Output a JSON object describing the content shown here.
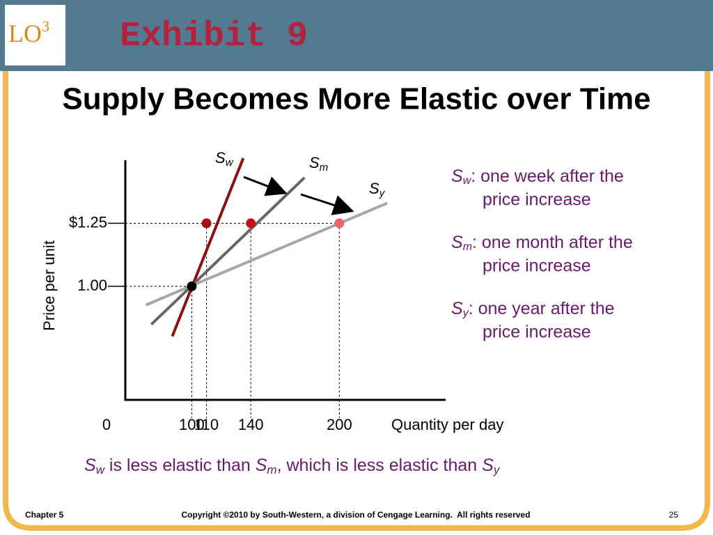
{
  "header": {
    "logo": "LO",
    "logo_sup": "3",
    "title": "Exhibit 9"
  },
  "chart_data": {
    "type": "line",
    "title": "Supply Becomes More Elastic over Time",
    "x_label": "Quantity per day",
    "y_label": "Price per unit",
    "origin_label": "0",
    "xlim": [
      55,
      272
    ],
    "ylim": [
      0.55,
      1.5
    ],
    "xticks": [
      100,
      110,
      140,
      200
    ],
    "yticks": [
      {
        "value": 1,
        "label": "1.00"
      },
      {
        "value": 1.25,
        "label": "$1.25"
      }
    ],
    "series": [
      {
        "name": "S",
        "subscript": "w",
        "color": "#8b1014",
        "x": [
          86.8,
          134.9
        ],
        "values": [
          0.802,
          1.508
        ]
      },
      {
        "name": "S",
        "subscript": "m",
        "color": "#666666",
        "x": [
          72.6,
          176.4
        ],
        "values": [
          0.849,
          1.431
        ]
      },
      {
        "name": "S",
        "subscript": "y",
        "color": "#a6a6a6",
        "x": [
          68.9,
          232.5
        ],
        "values": [
          0.926,
          1.33
        ]
      }
    ],
    "points": {
      "x": [
        100,
        110,
        140,
        200
      ],
      "values": [
        1,
        1.25,
        1.25,
        1.25
      ],
      "colors": [
        "#000000",
        "#a50e14",
        "#c8101a",
        "#f0626a"
      ]
    },
    "notes": [
      {
        "name": "S",
        "subscript": "w",
        "text": ": one week after the",
        "text2": "price increase"
      },
      {
        "name": "S",
        "subscript": "m",
        "text": ": one month after the",
        "text2": "price increase"
      },
      {
        "name": "S",
        "subscript": "y",
        "text": ": one year after the",
        "text2": "price increase"
      }
    ],
    "caption": [
      "S",
      "w",
      " is less elastic than ",
      "S",
      "m",
      ", which is less elastic than ",
      "S",
      "y"
    ]
  },
  "footer": {
    "chapter": "Chapter 5",
    "copyright": "Copyright ©2010 by South-Western, a division of Cengage Learning.  All rights reserved",
    "page": "25"
  }
}
